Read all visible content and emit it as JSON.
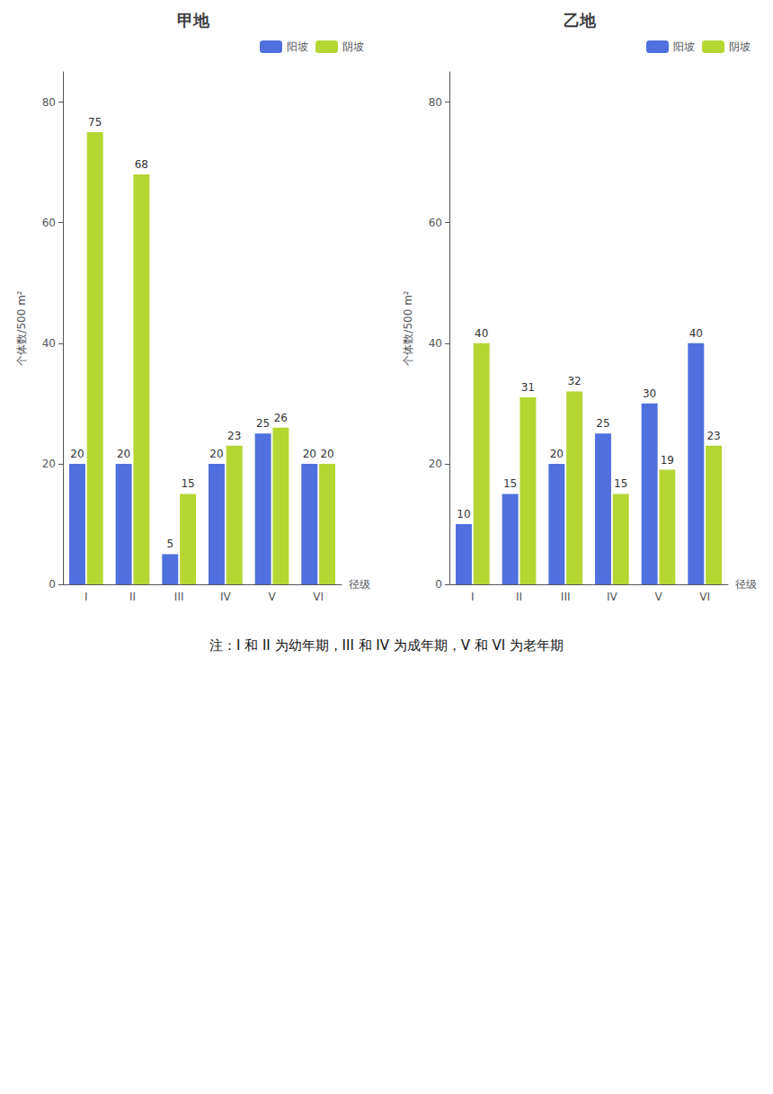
{
  "chart_data": [
    {
      "type": "bar",
      "title": "甲地",
      "categories": [
        "I",
        "II",
        "III",
        "IV",
        "V",
        "VI"
      ],
      "series": [
        {
          "name": "阳坡",
          "values": [
            20,
            20,
            5,
            20,
            25,
            20
          ]
        },
        {
          "name": "阴坡",
          "values": [
            75,
            68,
            15,
            23,
            26,
            20
          ]
        }
      ],
      "xlabel": "径级",
      "ylabel": "个体数/500 m²",
      "ylim": [
        0,
        85
      ],
      "yticks": [
        0,
        20,
        40,
        60,
        80
      ],
      "grid": false,
      "legend": "upper right",
      "data_labels": true
    },
    {
      "type": "bar",
      "title": "乙地",
      "categories": [
        "I",
        "II",
        "III",
        "IV",
        "V",
        "VI"
      ],
      "series": [
        {
          "name": "阳坡",
          "values": [
            10,
            15,
            20,
            25,
            30,
            40
          ]
        },
        {
          "name": "阴坡",
          "values": [
            40,
            31,
            32,
            15,
            19,
            23
          ]
        }
      ],
      "xlabel": "径级",
      "ylabel": "个体数/500 m²",
      "ylim": [
        0,
        85
      ],
      "yticks": [
        0,
        20,
        40,
        60,
        80
      ],
      "grid": false,
      "legend": "upper right",
      "data_labels": true
    }
  ],
  "annotations": [
    "注：I 和 II 为幼年期，III 和 IV 为成年期，V 和 VI 为老年期"
  ]
}
